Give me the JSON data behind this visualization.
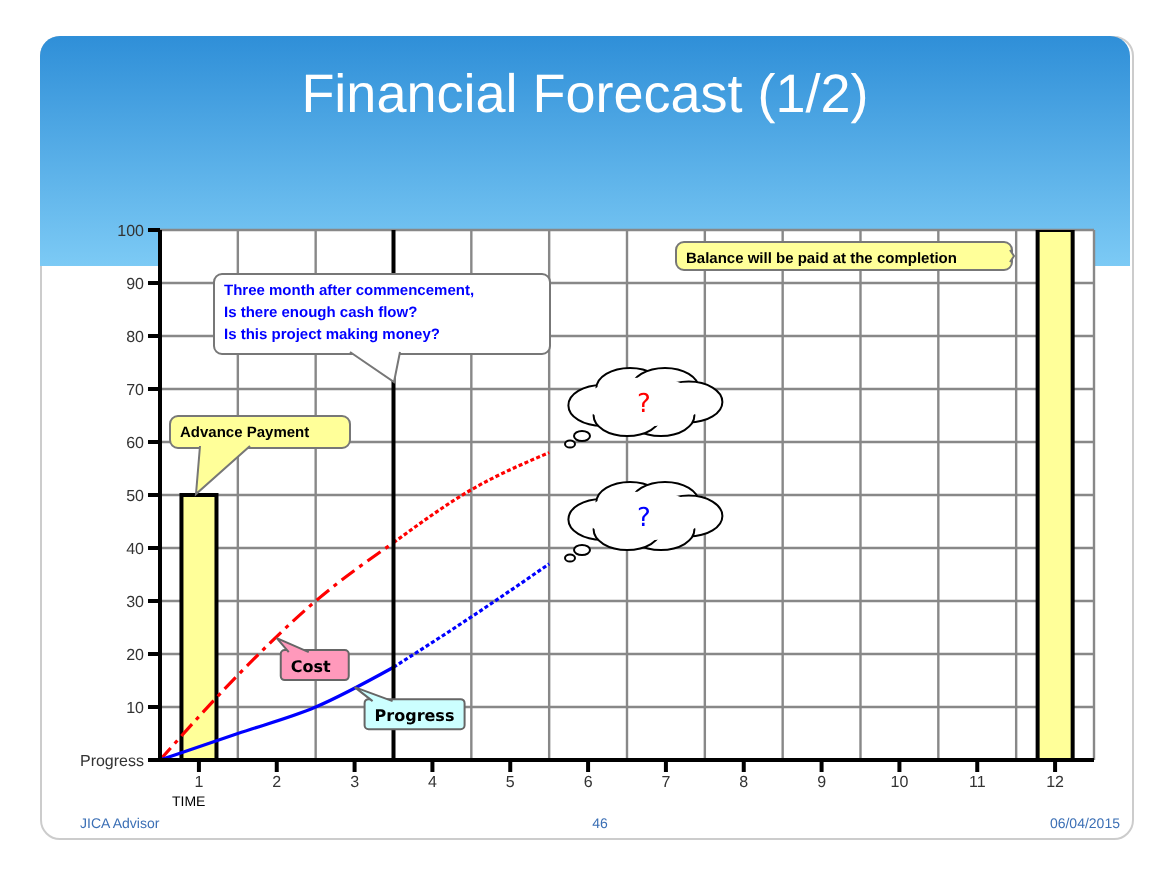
{
  "chart_data": {
    "type": "line",
    "title": "Financial Forecast (1/2)",
    "xlabel": "TIME",
    "xlim": [
      0,
      12
    ],
    "xticks": [
      {
        "value": 0.5,
        "label": "1"
      },
      {
        "value": 1.5,
        "label": "2"
      },
      {
        "value": 2.5,
        "label": "3"
      },
      {
        "value": 3.5,
        "label": "4"
      },
      {
        "value": 4.5,
        "label": "5"
      },
      {
        "value": 5.5,
        "label": "6"
      },
      {
        "value": 6.5,
        "label": "7"
      },
      {
        "value": 7.5,
        "label": "8"
      },
      {
        "value": 8.5,
        "label": "9"
      },
      {
        "value": 9.5,
        "label": "10"
      },
      {
        "value": 10.5,
        "label": "11"
      },
      {
        "value": 11.5,
        "label": "12"
      }
    ],
    "ylim": [
      0,
      100
    ],
    "yticks": [
      {
        "value": 0,
        "label": "Progress"
      },
      10,
      20,
      30,
      40,
      50,
      60,
      70,
      80,
      90,
      100
    ],
    "grid": true,
    "legend": false,
    "marker": "none",
    "series": [
      {
        "type": "bar",
        "color": "#ffff99",
        "x": [
          0.5,
          11.5
        ],
        "values": [
          50,
          100
        ]
      },
      {
        "name": "Cost",
        "color": "#ff0000",
        "line_style": "dashed",
        "x": [
          0,
          1,
          2,
          3
        ],
        "values": [
          0,
          16,
          30,
          41
        ]
      },
      {
        "color": "#ff0000",
        "line_style": "dotted",
        "x": [
          3,
          4,
          5
        ],
        "values": [
          41,
          51,
          58
        ]
      },
      {
        "name": "Progress",
        "color": "#0000ff",
        "line_style": "solid",
        "x": [
          0,
          1,
          2,
          3
        ],
        "values": [
          0,
          5,
          10,
          17.5
        ]
      },
      {
        "color": "#0000ff",
        "line_style": "dotted",
        "x": [
          3,
          4,
          5
        ],
        "values": [
          17.5,
          27,
          37
        ]
      }
    ],
    "ref_lines": [
      {
        "axis": "x",
        "value": 3,
        "color": "#000000"
      }
    ],
    "annotations": [
      "Advance Payment",
      "Balance will be paid at the completion",
      "Three month after commencement,\nIs there enough cash flow?\nIs this project making money?",
      "?",
      "?",
      "JICA Advisor",
      "46",
      "06/04/2015"
    ]
  }
}
